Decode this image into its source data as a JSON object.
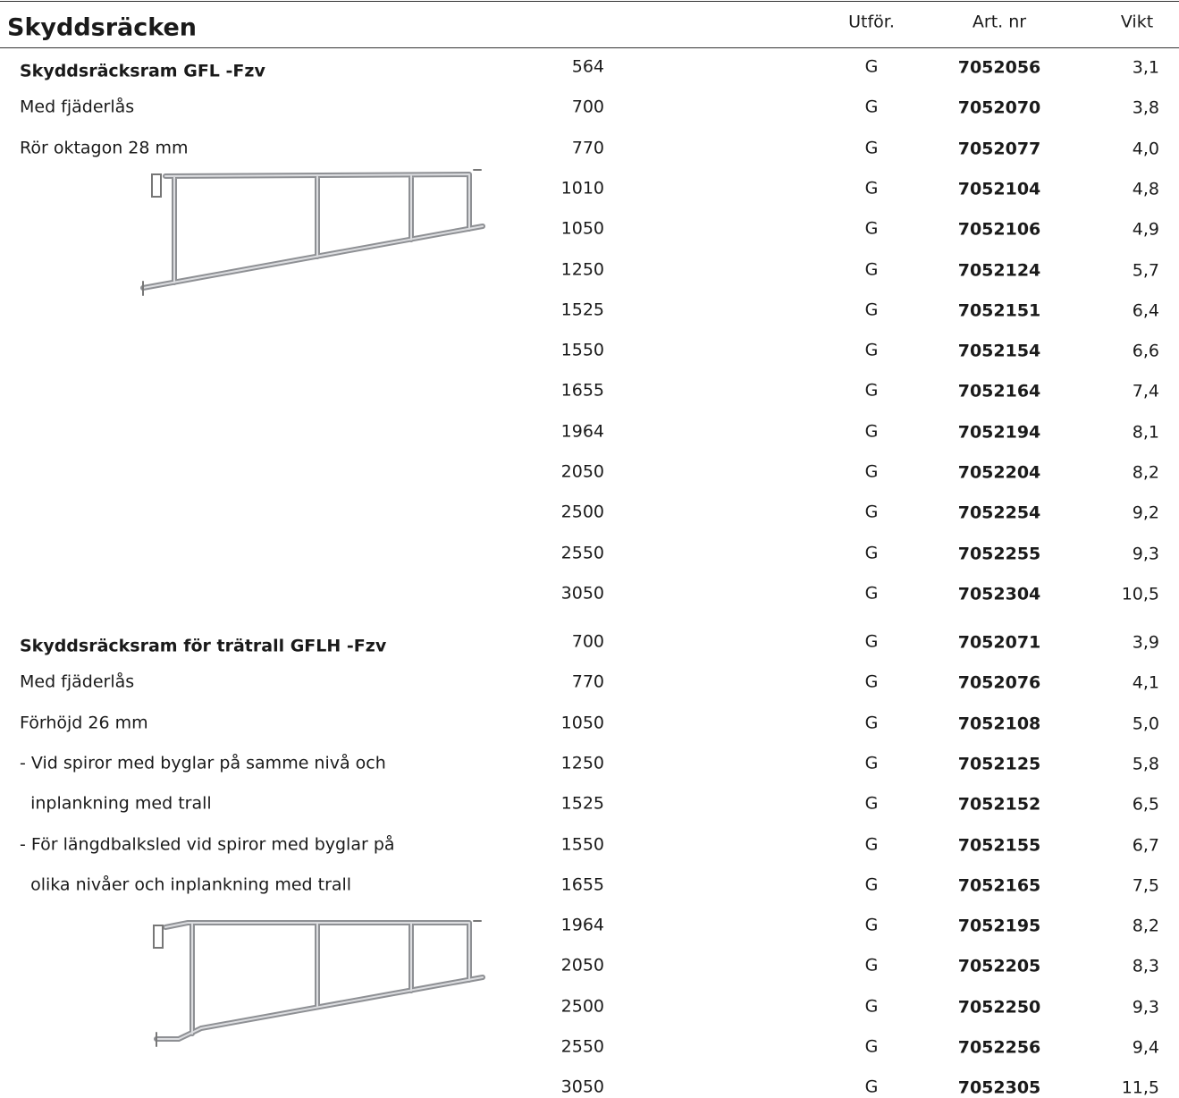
{
  "header": {
    "title": "Skyddsräcken",
    "columns": [
      "Utför.",
      "Art. nr",
      "Vikt"
    ]
  },
  "sections": [
    {
      "title": "Skyddsräcksram GFL -Fzv",
      "description": [
        "Med fjäderlås",
        "Rör oktagon 28 mm"
      ],
      "rows": [
        [
          "564",
          "G",
          "7052056",
          "3,1"
        ],
        [
          "700",
          "G",
          "7052070",
          "3,8"
        ],
        [
          "770",
          "G",
          "7052077",
          "4,0"
        ],
        [
          "1010",
          "G",
          "7052104",
          "4,8"
        ],
        [
          "1050",
          "G",
          "7052106",
          "4,9"
        ],
        [
          "1250",
          "G",
          "7052124",
          "5,7"
        ],
        [
          "1525",
          "G",
          "7052151",
          "6,4"
        ],
        [
          "1550",
          "G",
          "7052154",
          "6,6"
        ],
        [
          "1655",
          "G",
          "7052164",
          "7,4"
        ],
        [
          "1964",
          "G",
          "7052194",
          "8,1"
        ],
        [
          "2050",
          "G",
          "7052204",
          "8,2"
        ],
        [
          "2500",
          "G",
          "7052254",
          "9,2"
        ],
        [
          "2550",
          "G",
          "7052255",
          "9,3"
        ],
        [
          "3050",
          "G",
          "7052304",
          "10,5"
        ]
      ]
    },
    {
      "title": "Skyddsräcksram för trätrall GFLH -Fzv",
      "description": [
        "Med fjäderlås",
        "Förhöjd 26 mm",
        "- Vid spiror med byglar på samme nivå och",
        "  inplankning med trall",
        "- För längdbalksled vid spiror med byglar på",
        "  olika nivåer och inplankning med trall"
      ],
      "rows": [
        [
          "700",
          "G",
          "7052071",
          "3,9"
        ],
        [
          "770",
          "G",
          "7052076",
          "4,1"
        ],
        [
          "1050",
          "G",
          "7052108",
          "5,0"
        ],
        [
          "1250",
          "G",
          "7052125",
          "5,8"
        ],
        [
          "1525",
          "G",
          "7052152",
          "6,5"
        ],
        [
          "1550",
          "G",
          "7052155",
          "6,7"
        ],
        [
          "1655",
          "G",
          "7052165",
          "7,5"
        ],
        [
          "1964",
          "G",
          "7052195",
          "8,2"
        ],
        [
          "2050",
          "G",
          "7052205",
          "8,3"
        ],
        [
          "2500",
          "G",
          "7052250",
          "9,3"
        ],
        [
          "2550",
          "G",
          "7052256",
          "9,4"
        ],
        [
          "3050",
          "G",
          "7052305",
          "11,5"
        ]
      ]
    }
  ]
}
